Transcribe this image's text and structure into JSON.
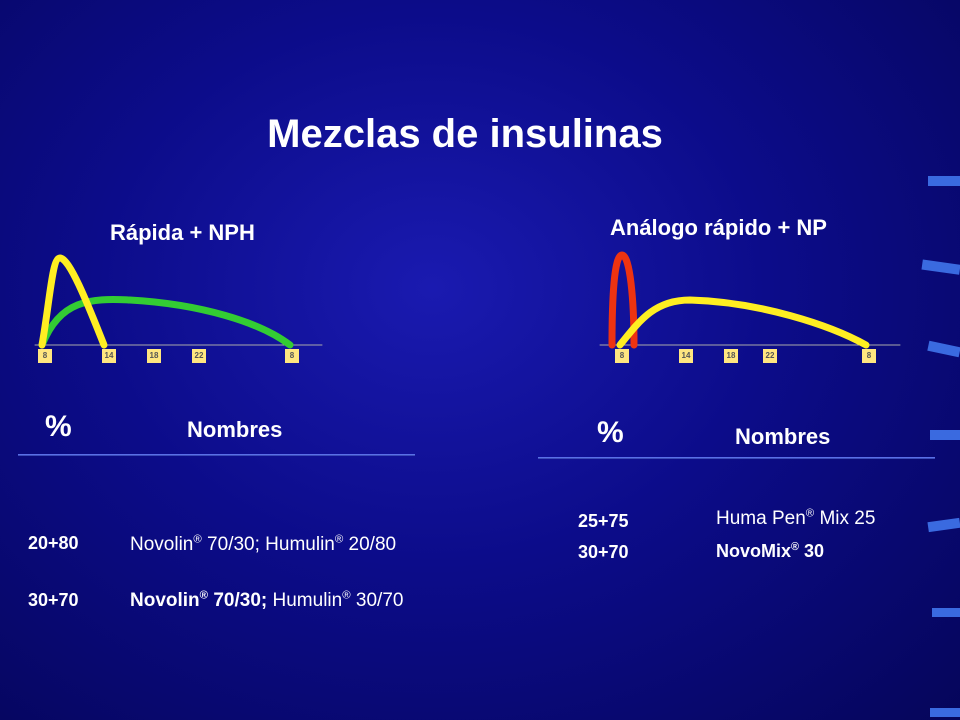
{
  "title": "Mezclas de insulinas",
  "panels": [
    {
      "title": "Rápida + NPH",
      "ticks": [
        "8",
        "14",
        "18",
        "22",
        "8"
      ],
      "header": {
        "percent": "%",
        "names": "Nombres"
      },
      "rows": [
        {
          "percent": "20+80",
          "name": [
            "Novolin",
            "®",
            " 70/30; Humulin",
            "®",
            " 20/80"
          ]
        },
        {
          "percent": "30+70",
          "name": [
            "Novolin",
            "®",
            " 70/30;",
            " Humulin",
            "®",
            " 30/70"
          ]
        }
      ]
    },
    {
      "title": "Análogo rápido + NP",
      "ticks": [
        "8",
        "14",
        "18",
        "22",
        "8"
      ],
      "header": {
        "percent": "%",
        "names": "Nombres"
      },
      "rows": [
        {
          "percent": "25+75",
          "name": [
            "Huma Pen",
            "®",
            " Mix 25"
          ]
        },
        {
          "percent": "30+70",
          "name": [
            "NovoMix",
            "®",
            " 30"
          ]
        }
      ]
    }
  ]
}
